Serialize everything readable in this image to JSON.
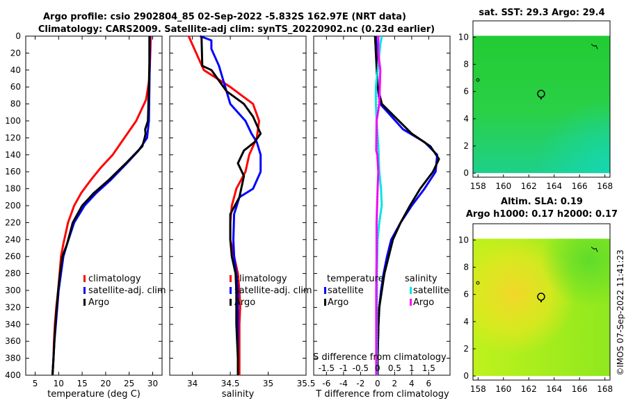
{
  "chart_data": [
    {
      "type": "line",
      "title": "Argo profile: csio 2902804_85 02-Sep-2022 -5.832S 162.97E (NRT data)",
      "subtitle": "Climatology: CARS2009. Satellite-adj clim: synTS_20220902.nc (0.23d earlier)",
      "xlabel": "temperature (deg C)",
      "ylabel": "",
      "xlim": [
        3,
        32
      ],
      "ylim": [
        400,
        0
      ],
      "xticks": [
        5,
        10,
        15,
        20,
        25,
        30
      ],
      "yticks": [
        0,
        20,
        40,
        60,
        80,
        100,
        120,
        140,
        160,
        180,
        200,
        220,
        240,
        260,
        280,
        300,
        320,
        340,
        360,
        380,
        400
      ],
      "legend": [
        "climatology",
        "satellite-adj. clim",
        "Argo"
      ],
      "series": [
        {
          "name": "climatology",
          "color": "#ff0000",
          "x": [
            29.6,
            29.5,
            29.3,
            28.6,
            26.5,
            24.0,
            21.5,
            19.0,
            16.8,
            14.8,
            13.3,
            12.0,
            11.0,
            10.5,
            10.2,
            9.9,
            9.5,
            9.2,
            9.0,
            8.9,
            8.7
          ],
          "y": [
            0,
            20,
            50,
            75,
            100,
            120,
            140,
            155,
            170,
            185,
            200,
            220,
            245,
            260,
            280,
            300,
            320,
            340,
            360,
            380,
            400
          ]
        },
        {
          "name": "satellite-adj. clim",
          "color": "#0000ff",
          "x": [
            29.4,
            29.4,
            29.3,
            29.2,
            28.8,
            27.0,
            24.5,
            21.0,
            18.0,
            15.5,
            13.3,
            11.8,
            11.0,
            10.5,
            10.0,
            9.7,
            9.4,
            9.1,
            8.9,
            8.7
          ],
          "y": [
            0,
            20,
            60,
            100,
            120,
            135,
            150,
            170,
            185,
            200,
            220,
            245,
            260,
            280,
            300,
            320,
            340,
            360,
            380,
            400
          ]
        },
        {
          "name": "Argo",
          "color": "#000000",
          "x": [
            29.3,
            29.3,
            29.2,
            29.1,
            29.0,
            28.4,
            28.5,
            28.3,
            27.8,
            24.3,
            20.6,
            17.5,
            15.0,
            13.0,
            11.8,
            10.8,
            10.3,
            9.9,
            9.6,
            9.3,
            9.1,
            8.9,
            8.7
          ],
          "y": [
            0,
            30,
            60,
            80,
            100,
            110,
            115,
            120,
            130,
            150,
            170,
            185,
            200,
            220,
            245,
            260,
            280,
            300,
            320,
            340,
            360,
            380,
            400
          ]
        }
      ]
    },
    {
      "type": "line",
      "xlabel": "salinity",
      "xlim": [
        33.7,
        35.5
      ],
      "xticks": [
        34,
        34.5,
        35,
        35.5
      ],
      "ylim": [
        400,
        0
      ],
      "legend": [
        "climatology",
        "satellite-adj. clim",
        "Argo"
      ],
      "series": [
        {
          "name": "climatology",
          "color": "#ff0000",
          "x": [
            33.95,
            34.05,
            34.15,
            34.5,
            34.8,
            34.88,
            34.85,
            34.75,
            34.7,
            34.58,
            34.52,
            34.5,
            34.5,
            34.55,
            34.6,
            34.62,
            34.63,
            34.62,
            34.62,
            34.62
          ],
          "y": [
            0,
            20,
            40,
            60,
            80,
            100,
            120,
            140,
            160,
            180,
            200,
            220,
            240,
            260,
            280,
            300,
            320,
            340,
            360,
            400
          ]
        },
        {
          "name": "satellite-adj. clim",
          "color": "#0000ff",
          "x": [
            34.1,
            34.25,
            34.25,
            34.35,
            34.4,
            34.5,
            34.7,
            34.78,
            34.85,
            34.9,
            34.9,
            34.8,
            34.62,
            34.55,
            34.54,
            34.55,
            34.58,
            34.6,
            34.6,
            34.6
          ],
          "y": [
            0,
            5,
            15,
            35,
            50,
            80,
            100,
            115,
            125,
            140,
            160,
            180,
            190,
            210,
            240,
            260,
            280,
            300,
            360,
            400
          ]
        },
        {
          "name": "Argo",
          "color": "#000000",
          "x": [
            34.12,
            34.13,
            34.25,
            34.45,
            34.68,
            34.8,
            34.9,
            34.82,
            34.68,
            34.6,
            34.68,
            34.62,
            34.5,
            34.5,
            34.52,
            34.57,
            34.58,
            34.58,
            34.6,
            34.6
          ],
          "y": [
            0,
            35,
            40,
            65,
            80,
            95,
            115,
            125,
            135,
            150,
            165,
            190,
            210,
            240,
            260,
            280,
            300,
            340,
            380,
            400
          ]
        }
      ]
    },
    {
      "type": "line",
      "xlabel": "T difference from climatology",
      "xlabel2": "S difference from climatology",
      "xlim": [
        -7.5,
        8.5
      ],
      "xticks": [
        -6,
        -4,
        -2,
        0,
        2,
        4,
        6
      ],
      "xticks2": [
        -1.5,
        -1,
        -0.5,
        0,
        0.5,
        1,
        1.5
      ],
      "ylim": [
        400,
        0
      ],
      "legend_groups": [
        "temperature",
        "salinity"
      ],
      "legend_t": [
        "satellite",
        "Argo"
      ],
      "legend_s": [
        "satellite",
        "Argo"
      ],
      "series": [
        {
          "name": "T satellite",
          "color": "#0000ff",
          "x": [
            -0.2,
            -0.1,
            0.0,
            0.3,
            1.2,
            3.0,
            5.5,
            7.0,
            6.8,
            5.5,
            4.0,
            2.7,
            1.6,
            1.1,
            0.7,
            0.4,
            0.2,
            0.1,
            0.0,
            0.0
          ],
          "y": [
            0,
            20,
            60,
            80,
            90,
            110,
            125,
            140,
            160,
            180,
            200,
            220,
            240,
            260,
            280,
            300,
            320,
            340,
            380,
            400
          ]
        },
        {
          "name": "T Argo",
          "color": "#000000",
          "x": [
            -0.3,
            -0.2,
            0.0,
            0.5,
            1.5,
            4.0,
            6.2,
            7.2,
            6.5,
            5.0,
            3.8,
            2.7,
            1.8,
            1.3,
            0.8,
            0.5,
            0.2,
            0.1,
            0.0,
            0.0
          ],
          "y": [
            0,
            20,
            60,
            80,
            90,
            115,
            130,
            145,
            160,
            180,
            200,
            220,
            240,
            260,
            280,
            300,
            320,
            340,
            380,
            400
          ]
        },
        {
          "name": "S satellite",
          "color": "#00e5e5",
          "x": [
            0.12,
            0.08,
            -0.05,
            -0.05,
            -0.03,
            0.02,
            0.05,
            0.1,
            0.12,
            0.05,
            0.0,
            -0.02,
            -0.02,
            -0.02,
            -0.02
          ],
          "y": [
            0,
            10,
            60,
            80,
            100,
            130,
            160,
            180,
            200,
            220,
            240,
            280,
            320,
            360,
            400
          ]
        },
        {
          "name": "S Argo",
          "color": "#ff00ff",
          "x": [
            0.02,
            0.02,
            0.08,
            0.05,
            -0.03,
            -0.04,
            -0.01,
            0.02,
            0.0,
            -0.03,
            -0.03,
            -0.04,
            -0.04,
            -0.04
          ],
          "y": [
            0,
            20,
            40,
            80,
            100,
            135,
            140,
            160,
            180,
            220,
            260,
            300,
            360,
            400
          ]
        }
      ]
    },
    {
      "type": "heatmap",
      "title": "sat. SST: 29.3 Argo: 29.4",
      "xlim": [
        157.6,
        168.4
      ],
      "ylim": [
        -0.3,
        11.2
      ],
      "xticks": [
        158,
        160,
        162,
        164,
        166,
        168
      ],
      "yticks": [
        0,
        2,
        4,
        6,
        8,
        10
      ],
      "data_ylim": [
        0,
        10.1
      ],
      "float_position": [
        162.97,
        5.832
      ]
    },
    {
      "type": "heatmap",
      "title": "Altim. SLA: 0.19",
      "subtitle": "Argo h1000: 0.17 h2000: 0.17",
      "xlim": [
        157.6,
        168.4
      ],
      "ylim": [
        -0.3,
        11.2
      ],
      "xticks": [
        158,
        160,
        162,
        164,
        166,
        168
      ],
      "yticks": [
        0,
        2,
        4,
        6,
        8,
        10
      ],
      "data_ylim": [
        0,
        10.1
      ],
      "float_position": [
        162.97,
        5.832
      ]
    }
  ],
  "watermark": "©IMOS 07-Sep-2022 11:41:23",
  "colors": {
    "climatology": "#ff0000",
    "satellite": "#0000ff",
    "argo": "#000000",
    "s_satellite": "#00e5e5",
    "s_argo": "#ff00ff"
  }
}
